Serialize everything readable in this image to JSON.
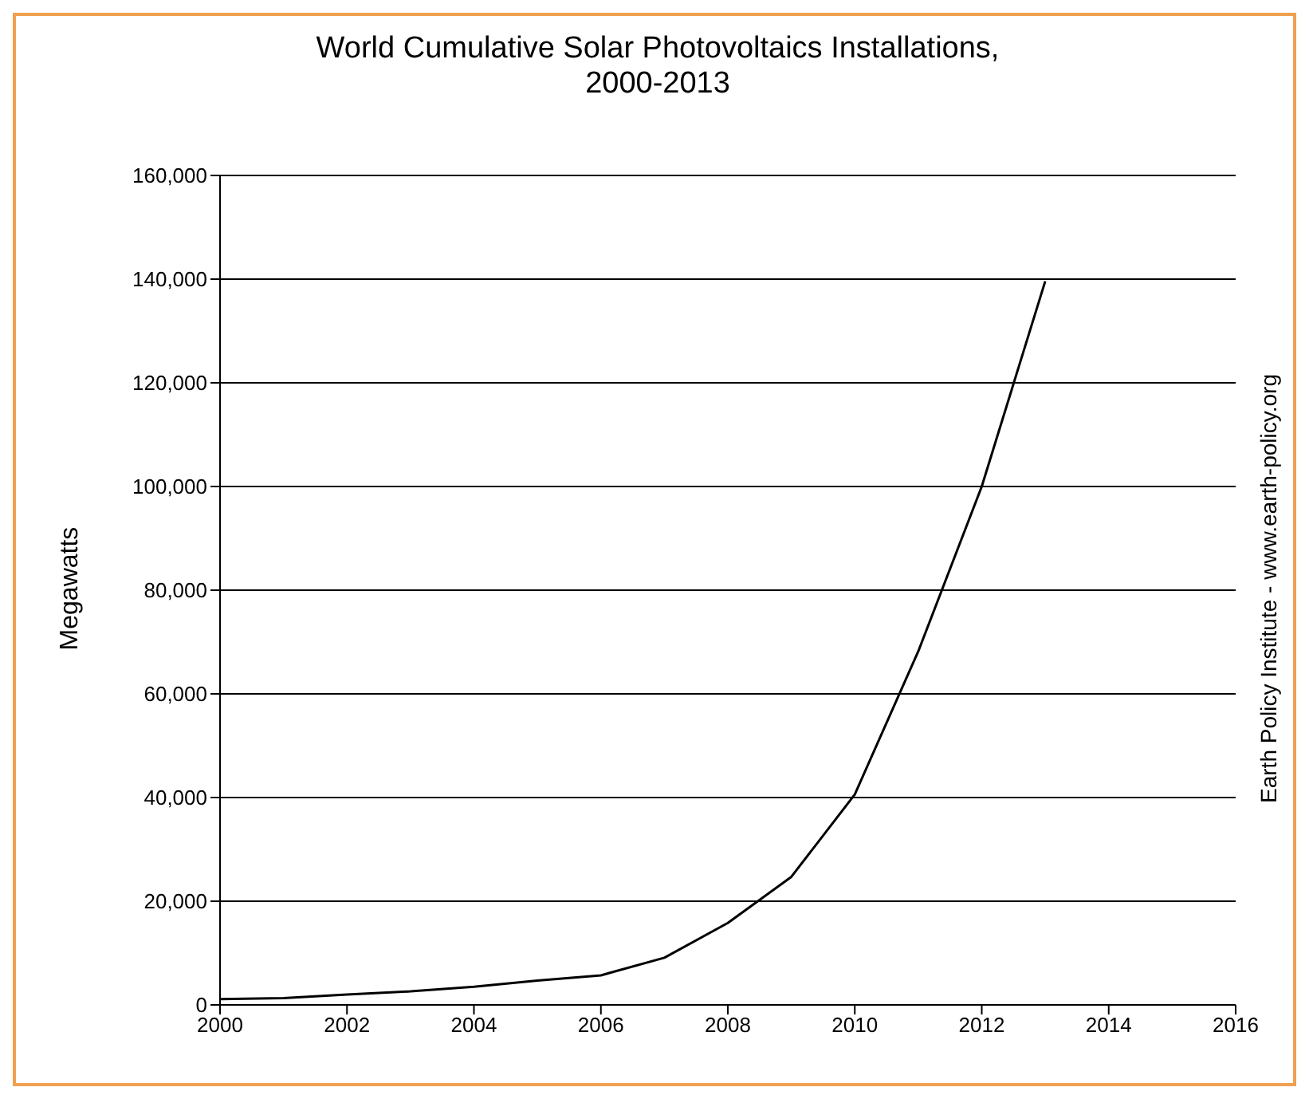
{
  "chart_data": {
    "type": "line",
    "title": "World Cumulative Solar Photovoltaics Installations,\n2000-2013",
    "ylabel": "Megawatts",
    "annotations": [
      "Earth Policy Institute - www.earth-policy.org"
    ],
    "x": [
      2000,
      2001,
      2002,
      2003,
      2004,
      2005,
      2006,
      2007,
      2008,
      2009,
      2010,
      2011,
      2012,
      2013
    ],
    "series": [
      {
        "color": "#000000",
        "values": [
          1100,
          1300,
          2000,
          2600,
          3500,
          4700,
          5700,
          9100,
          15800,
          24700,
          40600,
          68200,
          100000,
          139600
        ]
      }
    ],
    "xlim": [
      2000,
      2016
    ],
    "xticks": [
      2000,
      2002,
      2004,
      2006,
      2008,
      2010,
      2012,
      2014,
      2016
    ],
    "ylim": [
      0,
      160000
    ],
    "yticks": [
      {
        "value": 0,
        "label": "0"
      },
      {
        "value": 20000,
        "label": "20,000"
      },
      {
        "value": 40000,
        "label": "40,000"
      },
      {
        "value": 60000,
        "label": "60,000"
      },
      {
        "value": 80000,
        "label": "80,000"
      },
      {
        "value": 100000,
        "label": "100,000"
      },
      {
        "value": 120000,
        "label": "120,000"
      },
      {
        "value": 140000,
        "label": "140,000"
      },
      {
        "value": 160000,
        "label": "160,000"
      }
    ],
    "grid": "y",
    "legend": false,
    "marker": "none",
    "line_style": "solid"
  }
}
